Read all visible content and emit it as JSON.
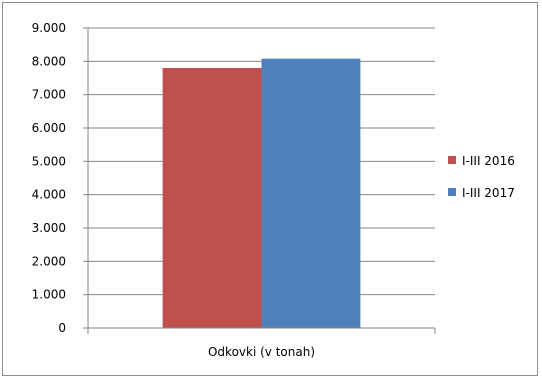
{
  "chart_data": {
    "type": "bar",
    "categories": [
      "Odkovki (v tonah)"
    ],
    "series": [
      {
        "name": "I-III 2016",
        "values": [
          7800
        ],
        "color": "#c0504d"
      },
      {
        "name": "I-III 2017",
        "values": [
          8080
        ],
        "color": "#4f81bd"
      }
    ],
    "ylim": [
      0,
      9000
    ],
    "yticks": [
      0,
      1000,
      2000,
      3000,
      4000,
      5000,
      6000,
      7000,
      8000,
      9000
    ],
    "ytick_labels": [
      "0",
      "1.000",
      "2.000",
      "3.000",
      "4.000",
      "5.000",
      "6.000",
      "7.000",
      "8.000",
      "9.000"
    ],
    "grid": true,
    "legend_position": "right"
  }
}
